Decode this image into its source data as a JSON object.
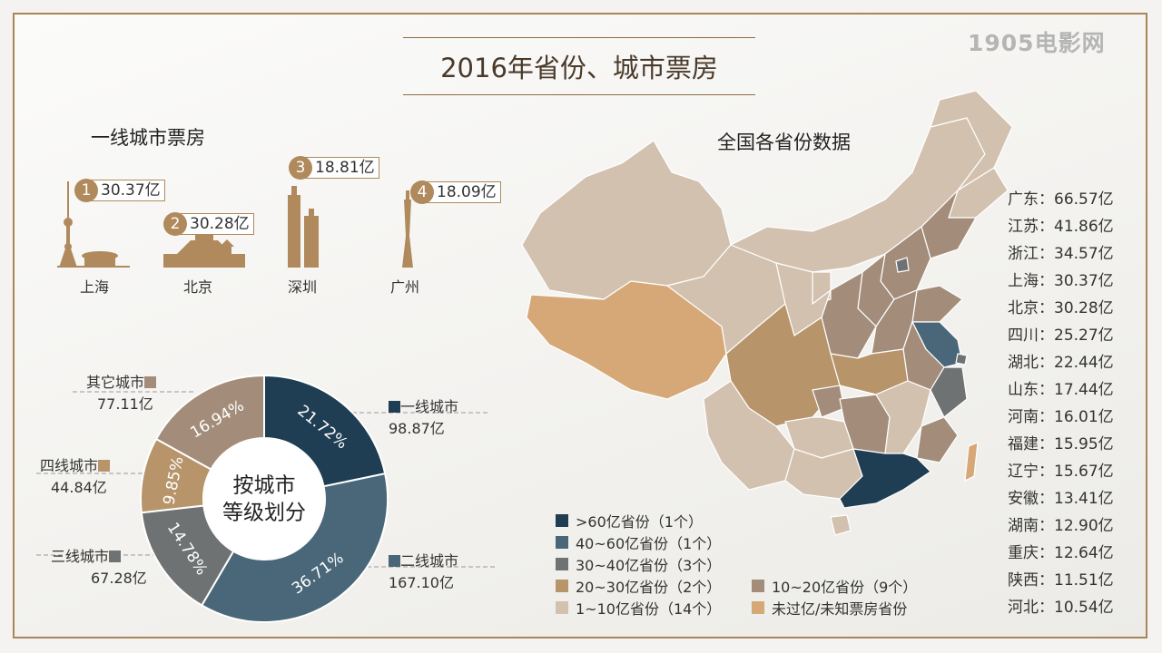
{
  "title": "2016年省份、城市票房",
  "logo": "1905电影网",
  "first_tier": {
    "heading": "一线城市票房",
    "cities": [
      {
        "rank": "1",
        "value": "30.37亿",
        "name": "上海"
      },
      {
        "rank": "2",
        "value": "30.28亿",
        "name": "北京"
      },
      {
        "rank": "3",
        "value": "18.81亿",
        "name": "深圳"
      },
      {
        "rank": "4",
        "value": "18.09亿",
        "name": "广州"
      }
    ]
  },
  "province_heading": "全国各省份数据",
  "provinces": [
    "广东：66.57亿",
    "江苏：41.86亿",
    "浙江：34.57亿",
    "上海：30.37亿",
    "北京：30.28亿",
    "四川：25.27亿",
    "湖北：22.44亿",
    "山东：17.44亿",
    "河南：16.01亿",
    "福建：15.95亿",
    "辽宁：15.67亿",
    "安徽：13.41亿",
    "湖南：12.90亿",
    "重庆：12.64亿",
    "陕西：11.51亿",
    "河北：10.54亿"
  ],
  "map_legend": [
    {
      "label": ">60亿省份（1个）",
      "color": "#1f3d53"
    },
    {
      "label": "40~60亿省份（1个）",
      "color": "#496779"
    },
    {
      "label": "30~40亿省份（3个）",
      "color": "#6f7273"
    },
    {
      "label": "20~30亿省份（2个）",
      "color": "#b8946a"
    },
    {
      "label": "10~20亿省份（9个）",
      "color": "#a38d7a"
    },
    {
      "label": "1~10亿省份（14个）",
      "color": "#d2c1ae"
    },
    {
      "label": "未过亿/未知票房省份",
      "color": "#d6a877"
    }
  ],
  "colors": {
    "accent": "#b08a5c",
    "frame": "#a8865a"
  },
  "chart_data": {
    "type": "pie",
    "center_label": [
      "按城市",
      "等级划分"
    ],
    "slices": [
      {
        "name": "一线城市",
        "value": 98.87,
        "value_label": "98.87亿",
        "percent": 21.72,
        "percent_label": "21.72%",
        "color": "#1f3d53"
      },
      {
        "name": "二线城市",
        "value": 167.1,
        "value_label": "167.10亿",
        "percent": 36.71,
        "percent_label": "36.71%",
        "color": "#496779"
      },
      {
        "name": "三线城市",
        "value": 67.28,
        "value_label": "67.28亿",
        "percent": 14.78,
        "percent_label": "14.78%",
        "color": "#6f7273"
      },
      {
        "name": "四线城市",
        "value": 44.84,
        "value_label": "44.84亿",
        "percent": 9.85,
        "percent_label": "9.85%",
        "color": "#b8946a"
      },
      {
        "name": "其它城市",
        "value": 77.11,
        "value_label": "77.11亿",
        "percent": 16.94,
        "percent_label": "16.94%",
        "color": "#a38d7a"
      }
    ]
  }
}
